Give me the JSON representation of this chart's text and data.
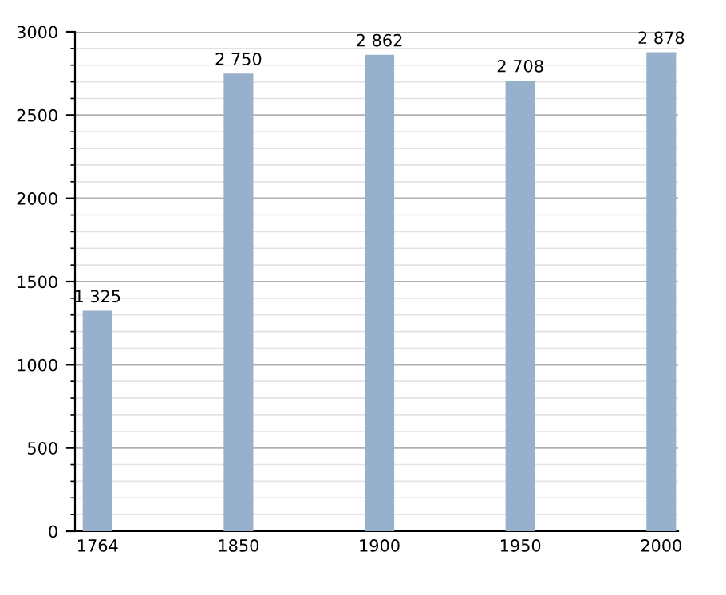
{
  "chart_data": {
    "type": "bar",
    "categories": [
      "1764",
      "1850",
      "1900",
      "1950",
      "2000"
    ],
    "values": [
      1325,
      2750,
      2862,
      2708,
      2878
    ],
    "value_labels": [
      "1 325",
      "2 750",
      "2 862",
      "2 708",
      "2 878"
    ],
    "color": "#97b1cc",
    "ylim": [
      0,
      3000
    ],
    "yticks": [
      0,
      500,
      1000,
      1500,
      2000,
      2500,
      3000
    ],
    "grid": "y"
  }
}
